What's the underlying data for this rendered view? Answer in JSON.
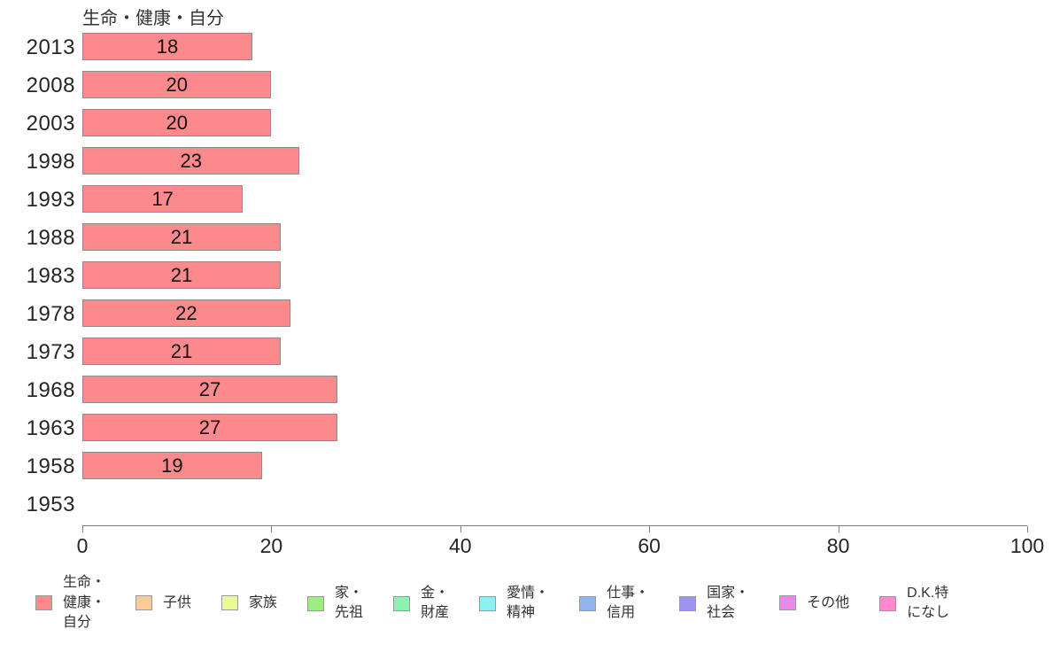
{
  "chart_data": {
    "type": "bar",
    "orientation": "horizontal",
    "title": "生命・健康・自分",
    "categories": [
      "2013",
      "2008",
      "2003",
      "1998",
      "1993",
      "1988",
      "1983",
      "1978",
      "1973",
      "1968",
      "1963",
      "1958",
      "1953"
    ],
    "values": [
      18,
      20,
      20,
      23,
      17,
      21,
      21,
      22,
      21,
      27,
      27,
      19,
      null
    ],
    "xlabel": "",
    "ylabel": "",
    "xlim": [
      0,
      100
    ],
    "x_ticks": [
      0,
      20,
      40,
      60,
      80,
      100
    ],
    "grid": "off",
    "bar_color": "#FC8A8C",
    "bar_border_color": "#8C8C8C",
    "axis_color": "#808080",
    "legend_position": "bottom",
    "legend": [
      {
        "label": "生命・\n健康・\n自分",
        "color": "#FC8A8C"
      },
      {
        "label": "子供",
        "color": "#FACC96"
      },
      {
        "label": "家族",
        "color": "#EBFA96"
      },
      {
        "label": "家・\n先祖",
        "color": "#9BEF82"
      },
      {
        "label": "金・\n財産",
        "color": "#8DF2B0"
      },
      {
        "label": "愛情・\n精神",
        "color": "#8DF0F2"
      },
      {
        "label": "仕事・\n信用",
        "color": "#90B4F0"
      },
      {
        "label": "国家・\n社会",
        "color": "#9E93F2"
      },
      {
        "label": "その他",
        "color": "#E98AE9"
      },
      {
        "label": "D.K.特\nになし",
        "color": "#FB8BD0"
      }
    ]
  }
}
